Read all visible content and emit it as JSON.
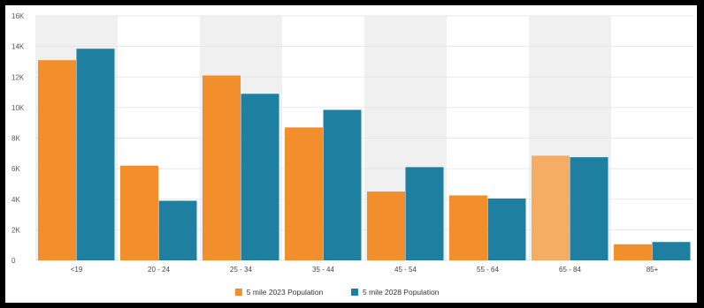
{
  "chart_data": {
    "type": "bar",
    "title": "",
    "xlabel": "",
    "ylabel": "",
    "categories": [
      "<19",
      "20 - 24",
      "25 - 34",
      "35 - 44",
      "45 - 54",
      "55 - 64",
      "65 - 84",
      "85+"
    ],
    "yticks": [
      "0",
      "2K",
      "4K",
      "6K",
      "8K",
      "10K",
      "12K",
      "14K",
      "16K"
    ],
    "ylim": [
      0,
      16000
    ],
    "grid": true,
    "alternating_band_color": "#f0f0f0",
    "legend_position": "bottom-center",
    "series": [
      {
        "name": "5 mile 2023 Population",
        "color": "#f28e2b",
        "values": [
          13100,
          6200,
          12100,
          8700,
          4500,
          4250,
          6850,
          1050
        ]
      },
      {
        "name": "5 mile 2028 Population",
        "color": "#1f7fa0",
        "values": [
          13850,
          3900,
          10900,
          9850,
          6100,
          4050,
          6750,
          1200
        ]
      }
    ],
    "highlighted": {
      "series": 0,
      "category": 6,
      "color": "#f5ac63"
    }
  }
}
